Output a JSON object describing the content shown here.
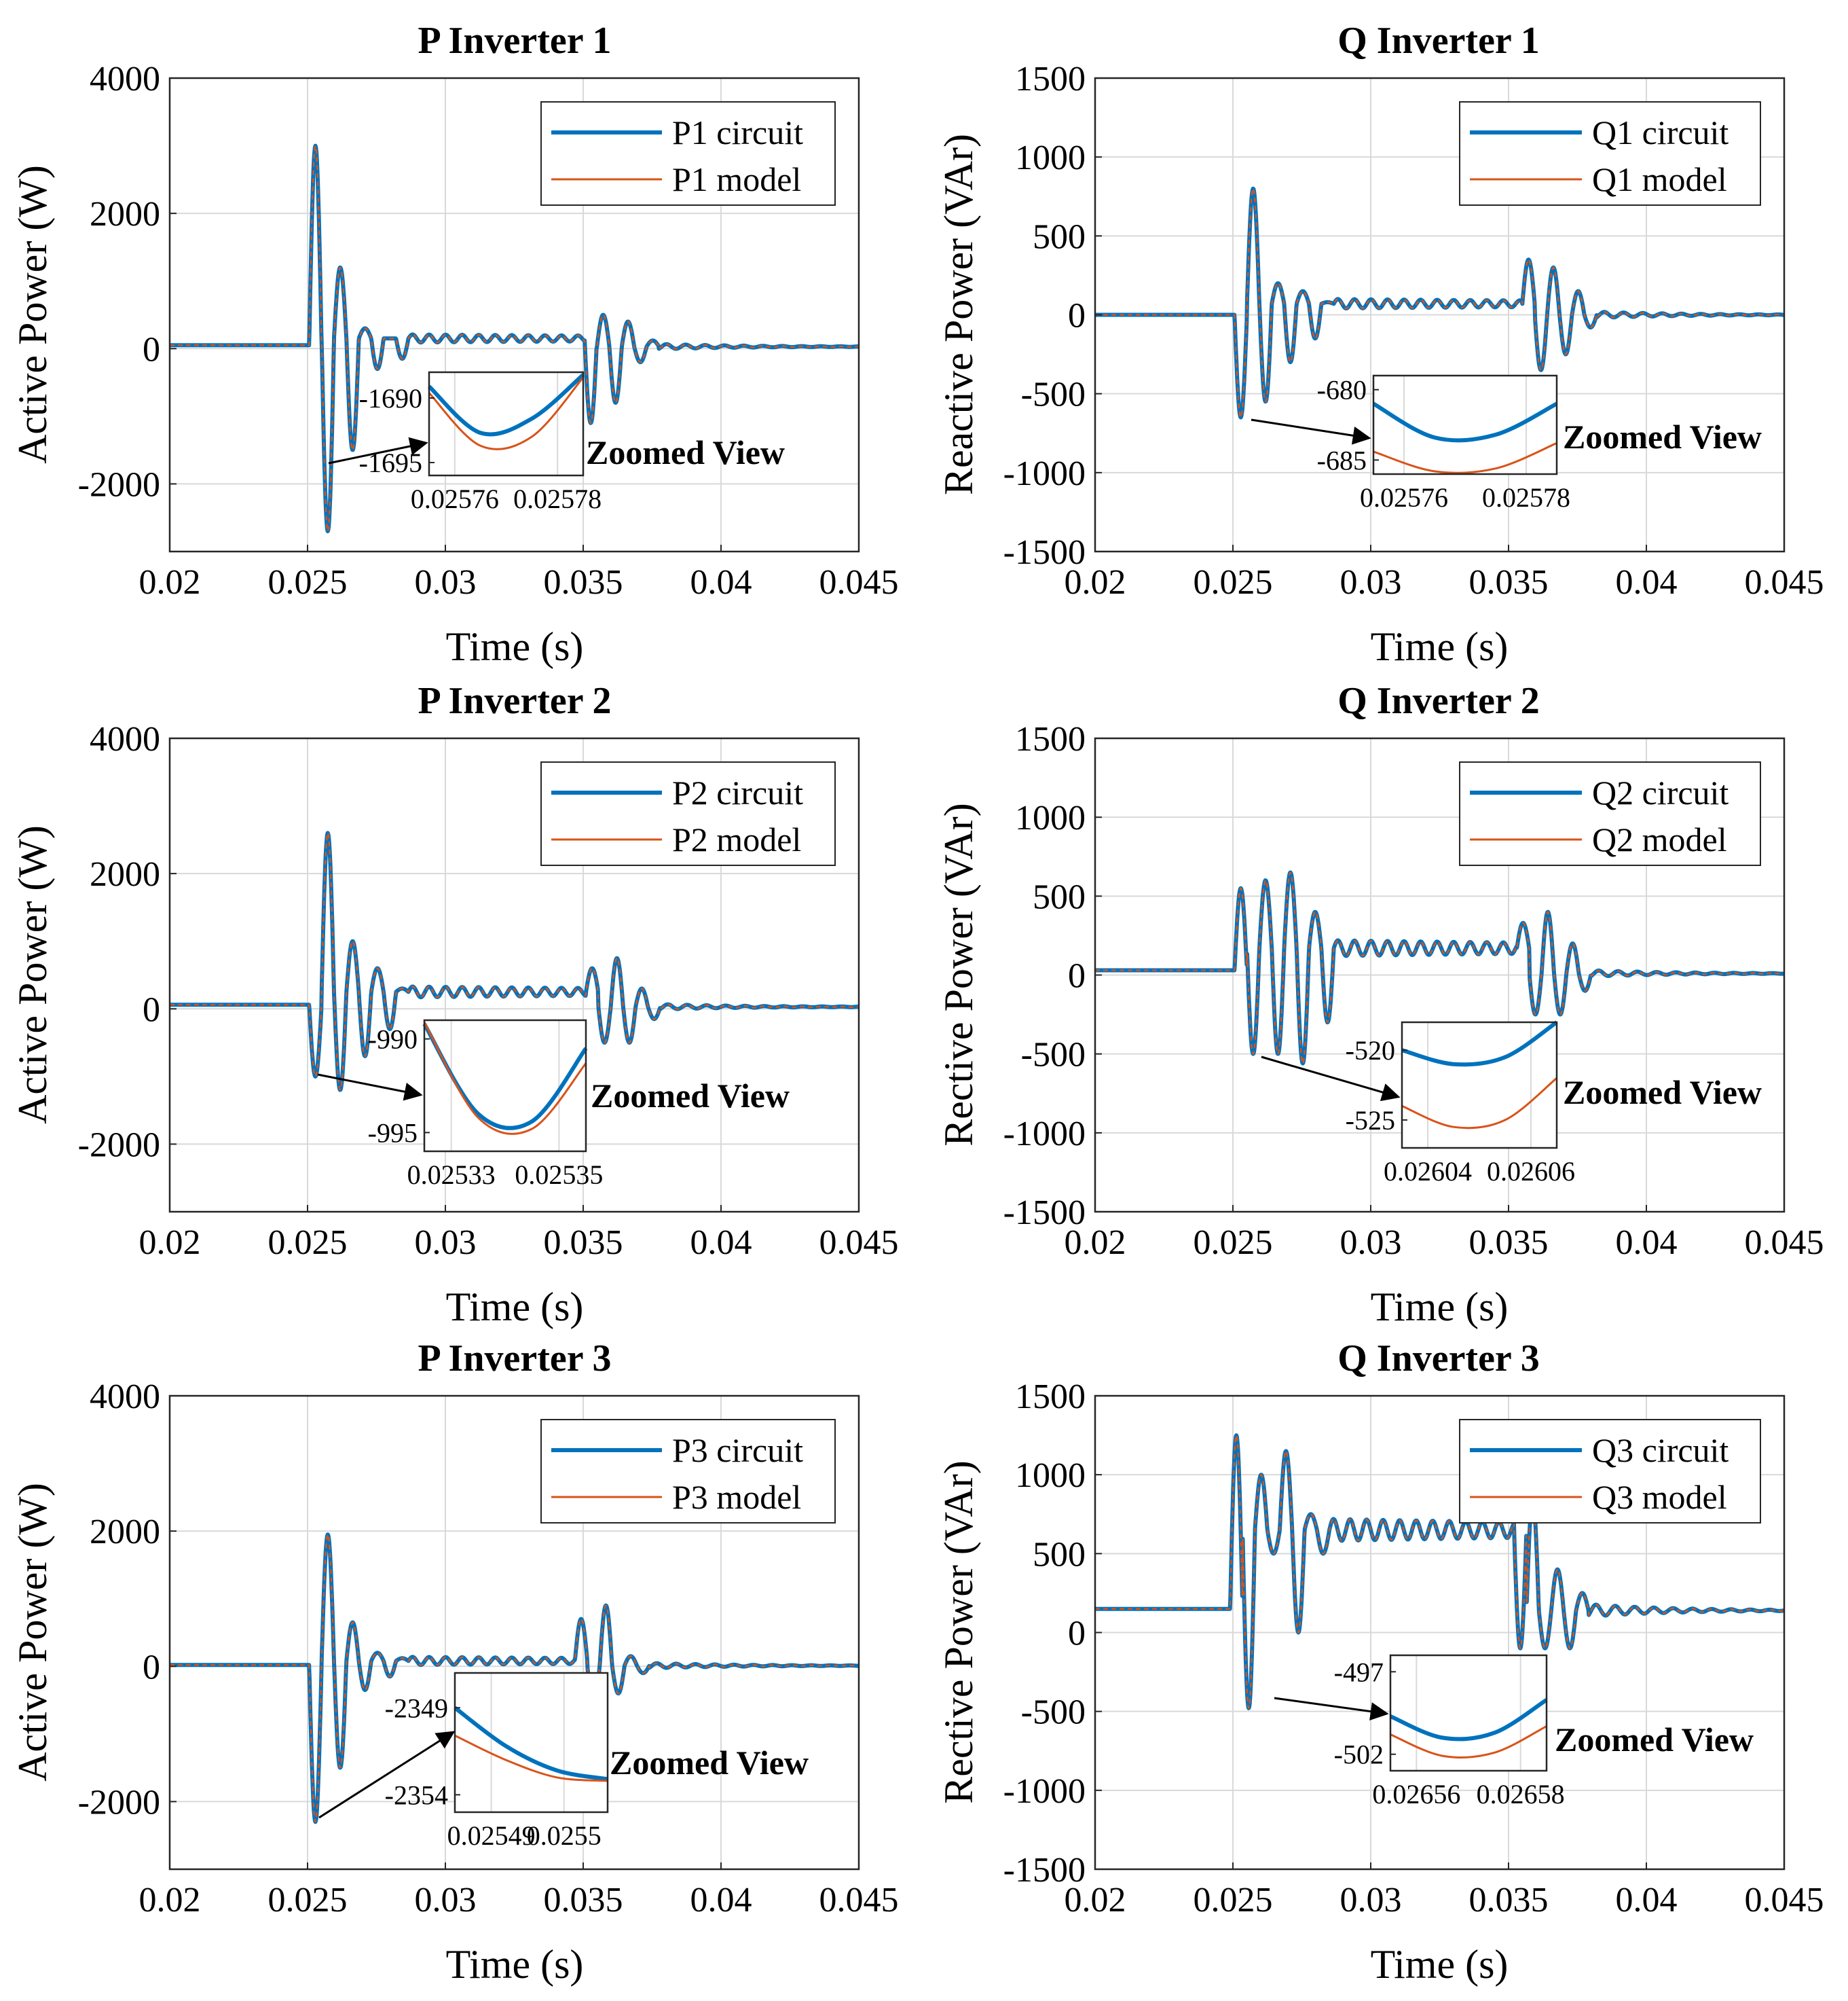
{
  "zoom_label": "Zoomed View",
  "colors": {
    "circuit": "#0072BD",
    "model": "#D95319",
    "grid": "#D9D9D9",
    "axis": "#262626"
  },
  "chart_data": [
    {
      "type": "line",
      "title": "P Inverter 1",
      "xlabel": "Time (s)",
      "ylabel": "Active Power (W)",
      "xlim": [
        0.02,
        0.045
      ],
      "ylim": [
        -3000,
        4000
      ],
      "xticks": [
        0.02,
        0.025,
        0.03,
        0.035,
        0.04,
        0.045
      ],
      "xtick_labels": [
        "0.02",
        "0.025",
        "0.03",
        "0.035",
        "0.04",
        "0.045"
      ],
      "yticks": [
        -2000,
        0,
        2000,
        4000
      ],
      "ytick_labels": [
        "-2000",
        "0",
        "2000",
        "4000"
      ],
      "legend": [
        "P1 circuit",
        "P1 model"
      ],
      "legend_position": "top-right",
      "grid": true,
      "trace": {
        "baseline": 50,
        "t0": 0.02506,
        "level": 150,
        "dip": -1690,
        "osc": [
          3000,
          -2700,
          1200,
          -1500,
          300,
          -300,
          150,
          -150
        ],
        "ringing": 60,
        "t1": 0.03505,
        "level2": 30,
        "osc2": [
          -1100,
          500,
          -800,
          400,
          -200,
          120
        ],
        "ringing2": 40
      },
      "zoom": {
        "xlim": [
          0.025755,
          0.025785
        ],
        "ylim": [
          -1696,
          -1688
        ],
        "xticks": [
          0.02576,
          0.02578
        ],
        "xtick_labels": [
          "0.02576",
          "0.02578"
        ],
        "yticks": [
          -1690,
          -1695
        ],
        "ytick_labels": [
          "-1690",
          "-1695"
        ],
        "circuit_curve": [
          -1689.1,
          -1692.7,
          -1691.6,
          -1688.2
        ],
        "model_curve": [
          -1689.6,
          -1693.7,
          -1693.0,
          -1688.4
        ],
        "source_point": [
          0.02556,
          -1690
        ]
      }
    },
    {
      "type": "line",
      "title": "Q Inverter 1",
      "xlabel": "Time (s)",
      "ylabel": "Reactive Power (VAr)",
      "xlim": [
        0.02,
        0.045
      ],
      "ylim": [
        -1500,
        1500
      ],
      "xticks": [
        0.02,
        0.025,
        0.03,
        0.035,
        0.04,
        0.045
      ],
      "xtick_labels": [
        "0.02",
        "0.025",
        "0.03",
        "0.035",
        "0.04",
        "0.045"
      ],
      "yticks": [
        -1500,
        -1000,
        -500,
        0,
        500,
        1000,
        1500
      ],
      "ytick_labels": [
        "-1500",
        "-1000",
        "-500",
        "0",
        "500",
        "1000",
        "1500"
      ],
      "legend": [
        "Q1 circuit",
        "Q1 model"
      ],
      "legend_position": "top-right",
      "grid": true,
      "trace": {
        "baseline": 0,
        "t0": 0.02506,
        "level": 70,
        "dip": -680,
        "osc": [
          -650,
          800,
          -550,
          200,
          -300,
          150,
          -150,
          80
        ],
        "ringing": 30,
        "t1": 0.0355,
        "level2": 0,
        "osc2": [
          350,
          -350,
          300,
          -250,
          150,
          -80
        ],
        "ringing2": 20
      },
      "zoom": {
        "xlim": [
          0.025755,
          0.025785
        ],
        "ylim": [
          -686,
          -679
        ],
        "xticks": [
          0.02576,
          0.02578
        ],
        "xtick_labels": [
          "0.02576",
          "0.02578"
        ],
        "yticks": [
          -680,
          -685
        ],
        "ytick_labels": [
          "-680",
          "-685"
        ],
        "circuit_curve": [
          -681.0,
          -683.4,
          -683.2,
          -681.0
        ],
        "model_curve": [
          -684.4,
          -685.8,
          -685.6,
          -683.8
        ],
        "source_point": [
          0.02556,
          -660
        ]
      }
    },
    {
      "type": "line",
      "title": "P Inverter 2",
      "xlabel": "Time (s)",
      "ylabel": "Active Power (W)",
      "xlim": [
        0.02,
        0.045
      ],
      "ylim": [
        -3000,
        4000
      ],
      "xticks": [
        0.02,
        0.025,
        0.03,
        0.035,
        0.04,
        0.045
      ],
      "xtick_labels": [
        "0.02",
        "0.025",
        "0.03",
        "0.035",
        "0.04",
        "0.045"
      ],
      "yticks": [
        -2000,
        0,
        2000,
        4000
      ],
      "ytick_labels": [
        "-2000",
        "0",
        "2000",
        "4000"
      ],
      "legend": [
        "P2 circuit",
        "P2 model"
      ],
      "legend_position": "top-right",
      "grid": true,
      "trace": {
        "baseline": 60,
        "t0": 0.02506,
        "level": 250,
        "dip": -990,
        "osc": [
          -1000,
          2600,
          -1200,
          1000,
          -700,
          600,
          -300,
          300
        ],
        "ringing": 80,
        "t1": 0.0351,
        "level2": 30,
        "osc2": [
          600,
          -500,
          750,
          -500,
          300,
          -150
        ],
        "ringing2": 40
      },
      "zoom": {
        "xlim": [
          0.025325,
          0.025355
        ],
        "ylim": [
          -996,
          -989
        ],
        "xticks": [
          0.02533,
          0.02535
        ],
        "xtick_labels": [
          "0.02533",
          "0.02535"
        ],
        "yticks": [
          -990,
          -995
        ],
        "ytick_labels": [
          "-990",
          "-995"
        ],
        "circuit_curve": [
          -989.2,
          -994.0,
          -994.4,
          -990.5
        ],
        "model_curve": [
          -989.1,
          -994.2,
          -994.8,
          -991.3
        ],
        "source_point": [
          0.02533,
          -990
        ]
      }
    },
    {
      "type": "line",
      "title": "Q Inverter 2",
      "xlabel": "Time (s)",
      "ylabel": "Rective Power (VAr)",
      "xlim": [
        0.02,
        0.045
      ],
      "ylim": [
        -1500,
        1500
      ],
      "xticks": [
        0.02,
        0.025,
        0.03,
        0.035,
        0.04,
        0.045
      ],
      "xtick_labels": [
        "0.02",
        "0.025",
        "0.03",
        "0.035",
        "0.04",
        "0.045"
      ],
      "yticks": [
        -1500,
        -1000,
        -500,
        0,
        500,
        1000,
        1500
      ],
      "ytick_labels": [
        "-1500",
        "-1000",
        "-500",
        "0",
        "500",
        "1000",
        "1500"
      ],
      "legend": [
        "Q2 circuit",
        "Q2 model"
      ],
      "legend_position": "top-right",
      "grid": true,
      "trace": {
        "baseline": 30,
        "t0": 0.02506,
        "level": 170,
        "dip": -520,
        "osc": [
          550,
          -500,
          600,
          -500,
          650,
          -560,
          400,
          -300
        ],
        "ringing": 50,
        "t1": 0.0353,
        "level2": 10,
        "osc2": [
          330,
          -250,
          400,
          -250,
          200,
          -100
        ],
        "ringing2": 20
      },
      "zoom": {
        "xlim": [
          0.026035,
          0.026065
        ],
        "ylim": [
          -527,
          -518
        ],
        "xticks": [
          0.02604,
          0.02606
        ],
        "xtick_labels": [
          "0.02604",
          "0.02606"
        ],
        "yticks": [
          -520,
          -525
        ],
        "ytick_labels": [
          "-520",
          "-525"
        ],
        "circuit_curve": [
          -520.0,
          -521.0,
          -520.5,
          -518.0
        ],
        "model_curve": [
          -524.0,
          -525.5,
          -525.0,
          -522.0
        ],
        "source_point": [
          0.02604,
          -520
        ]
      }
    },
    {
      "type": "line",
      "title": "P Inverter 3",
      "xlabel": "Time (s)",
      "ylabel": "Active Power (W)",
      "xlim": [
        0.02,
        0.045
      ],
      "ylim": [
        -3000,
        4000
      ],
      "xticks": [
        0.02,
        0.025,
        0.03,
        0.035,
        0.04,
        0.045
      ],
      "xtick_labels": [
        "0.02",
        "0.025",
        "0.03",
        "0.035",
        "0.04",
        "0.045"
      ],
      "yticks": [
        -2000,
        0,
        2000,
        4000
      ],
      "ytick_labels": [
        "-2000",
        "0",
        "2000",
        "4000"
      ],
      "legend": [
        "P3 circuit",
        "P3 model"
      ],
      "legend_position": "top-right",
      "grid": true,
      "trace": {
        "baseline": 20,
        "t0": 0.02506,
        "level": 80,
        "dip": -2350,
        "osc": [
          -2300,
          1950,
          -1500,
          650,
          -350,
          200,
          -150,
          120
        ],
        "ringing": 60,
        "t1": 0.0347,
        "level2": 10,
        "osc2": [
          700,
          -600,
          900,
          -400,
          150,
          -100
        ],
        "ringing2": 40
      },
      "zoom": {
        "xlim": [
          0.025485,
          0.025506
        ],
        "ylim": [
          -2355,
          -2347
        ],
        "xticks": [
          0.02549,
          0.0255
        ],
        "xtick_labels": [
          "0.02549",
          "0.0255"
        ],
        "yticks": [
          -2349,
          -2354
        ],
        "ytick_labels": [
          "-2349",
          "-2354"
        ],
        "circuit_curve": [
          -2349.0,
          -2351.2,
          -2352.6,
          -2353.1
        ],
        "model_curve": [
          -2350.6,
          -2352.0,
          -2353.0,
          -2353.2
        ],
        "source_point": [
          0.02549,
          -2330
        ]
      }
    },
    {
      "type": "line",
      "title": "Q Inverter 3",
      "xlabel": "Time (s)",
      "ylabel": "Rective Power (VAr)",
      "xlim": [
        0.02,
        0.045
      ],
      "ylim": [
        -1500,
        1500
      ],
      "xticks": [
        0.02,
        0.025,
        0.03,
        0.035,
        0.04,
        0.045
      ],
      "xtick_labels": [
        "0.02",
        "0.025",
        "0.03",
        "0.035",
        "0.04",
        "0.045"
      ],
      "yticks": [
        -1500,
        -1000,
        -500,
        0,
        500,
        1000,
        1500
      ],
      "ytick_labels": [
        "-1500",
        "-1000",
        "-500",
        "0",
        "500",
        "1000",
        "1500"
      ],
      "legend": [
        "Q3 circuit",
        "Q3 model"
      ],
      "legend_position": "top-right",
      "grid": true,
      "trace": {
        "baseline": 150,
        "t0": 0.0249,
        "level": 650,
        "dip": -480,
        "osc": [
          1250,
          -480,
          1000,
          500,
          1150,
          0,
          750,
          500
        ],
        "ringing": 70,
        "t1": 0.0352,
        "level2": 140,
        "osc2": [
          -100,
          850,
          -100,
          400,
          -100,
          250
        ],
        "ringing2": 40
      },
      "zoom": {
        "xlim": [
          0.026555,
          0.026585
        ],
        "ylim": [
          -503,
          -496
        ],
        "xticks": [
          0.02656,
          0.02658
        ],
        "xtick_labels": [
          "0.02656",
          "0.02658"
        ],
        "yticks": [
          -497,
          -502
        ],
        "ytick_labels": [
          "-497",
          "-502"
        ],
        "circuit_curve": [
          -499.7,
          -501.0,
          -500.7,
          -498.7
        ],
        "model_curve": [
          -500.8,
          -502.1,
          -501.9,
          -500.3
        ],
        "source_point": [
          0.02656,
          -480
        ]
      }
    }
  ]
}
